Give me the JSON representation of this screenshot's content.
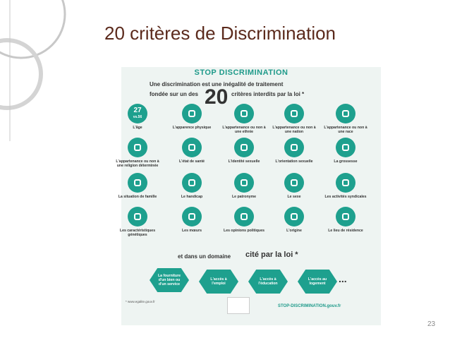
{
  "title": "20 critères de Discrimination",
  "page_number": "23",
  "infographic": {
    "banner": "STOP DISCRIMINATION",
    "intro_line1": "Une discrimination est une inégalité de traitement",
    "intro_line2_a": "fondée sur un des",
    "intro_big": "20",
    "intro_line2_b": "critères interdits par la loi *",
    "age_icon": "27",
    "age_icon_sub": "vs.56",
    "criteria": [
      "L'âge",
      "L'apparence physique",
      "L'appartenance ou non à une ethnie",
      "L'appartenance ou non à une nation",
      "L'appartenance ou non à une race",
      "L'appartenance ou non à une religion déterminée",
      "L'état de santé",
      "L'identité sexuelle",
      "L'orientation sexuelle",
      "La grossesse",
      "La situation de famille",
      "Le handicap",
      "Le patronyme",
      "Le sexe",
      "Les activités syndicales",
      "Les caractéristiques génétiques",
      "Les mœurs",
      "Les opinions politiques",
      "L'origine",
      "Le lieu de résidence"
    ],
    "domain_intro_a": "et dans un domaine",
    "domain_intro_b": "cité par la loi *",
    "domains": [
      "La fourniture d'un bien ou d'un service",
      "L'accès à l'emploi",
      "L'accès à l'éducation",
      "L'accès au logement"
    ],
    "domains_more": "...",
    "footnote": "* www.egalite.gouv.fr",
    "site": "STOP-DISCRIMINATION.gouv.fr"
  }
}
